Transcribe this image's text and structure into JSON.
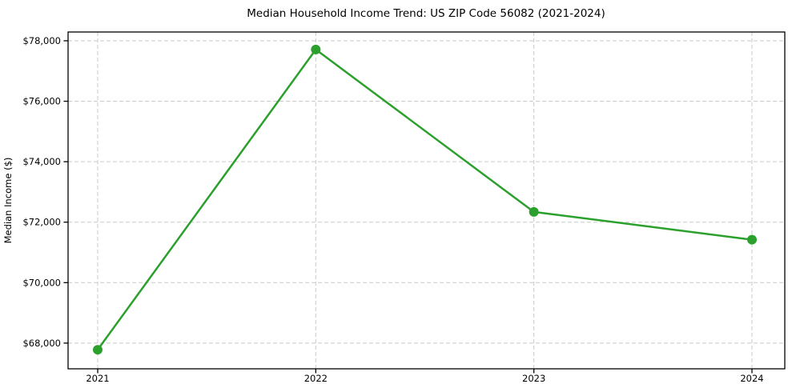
{
  "chart_data": {
    "type": "line",
    "title": "Median Household Income Trend: US ZIP Code 56082 (2021-2024)",
    "xlabel": "",
    "ylabel": "Median Income ($)",
    "x": [
      2021,
      2022,
      2023,
      2024
    ],
    "x_tick_labels": [
      "2021",
      "2022",
      "2023",
      "2024"
    ],
    "series": [
      {
        "name": "Median Household Income",
        "values": [
          67780,
          77710,
          72340,
          71420
        ]
      }
    ],
    "y_ticks": [
      {
        "value": 68000,
        "label": "$68,000"
      },
      {
        "value": 70000,
        "label": "$70,000"
      },
      {
        "value": 72000,
        "label": "$72,000"
      },
      {
        "value": 74000,
        "label": "$74,000"
      },
      {
        "value": 76000,
        "label": "$76,000"
      },
      {
        "value": 78000,
        "label": "$78,000"
      }
    ],
    "ylim": [
      67150,
      78290
    ],
    "grid": true,
    "grid_style": "dashed",
    "legend_position": "none",
    "colors": {
      "line": "#2ca02c",
      "marker": "#2ca02c",
      "grid": "#c9c9c9",
      "spine": "#000000",
      "text": "#000000",
      "background": "#ffffff"
    },
    "marker": "o",
    "marker_size": 6,
    "line_width": 2.5
  }
}
